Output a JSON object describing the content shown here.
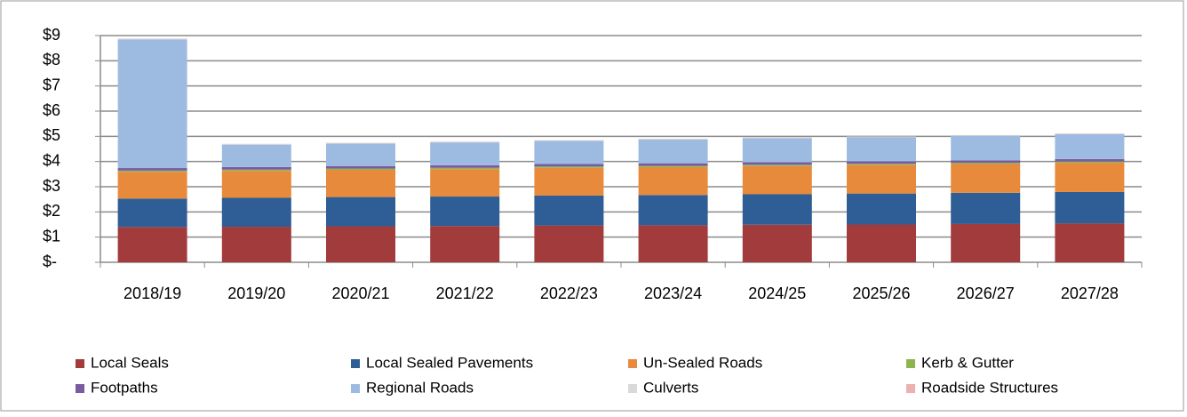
{
  "chart_data": {
    "type": "stacked_bar",
    "categories": [
      "2018/19",
      "2019/20",
      "2020/21",
      "2021/22",
      "2022/23",
      "2023/24",
      "2024/25",
      "2025/26",
      "2026/27",
      "2027/28"
    ],
    "series": [
      {
        "name": "Local Seals",
        "color": "#a13b3c",
        "values": [
          1.4,
          1.41,
          1.43,
          1.44,
          1.46,
          1.47,
          1.49,
          1.5,
          1.52,
          1.54
        ]
      },
      {
        "name": "Local Sealed Pavements",
        "color": "#2f5d95",
        "values": [
          1.13,
          1.15,
          1.16,
          1.17,
          1.19,
          1.2,
          1.21,
          1.23,
          1.24,
          1.25
        ]
      },
      {
        "name": "Un-Sealed Roads",
        "color": "#e88a3b",
        "values": [
          1.06,
          1.07,
          1.08,
          1.09,
          1.1,
          1.11,
          1.12,
          1.13,
          1.14,
          1.16
        ]
      },
      {
        "name": "Kerb & Gutter",
        "color": "#8db54e",
        "values": [
          0.05,
          0.05,
          0.05,
          0.05,
          0.05,
          0.05,
          0.05,
          0.05,
          0.05,
          0.05
        ]
      },
      {
        "name": "Footpaths",
        "color": "#7a5ba1",
        "values": [
          0.1,
          0.1,
          0.1,
          0.1,
          0.1,
          0.1,
          0.1,
          0.1,
          0.1,
          0.1
        ]
      },
      {
        "name": "Regional Roads",
        "color": "#9dbbe1",
        "values": [
          5.11,
          0.89,
          0.89,
          0.91,
          0.92,
          0.94,
          0.96,
          0.96,
          0.97,
          0.99
        ]
      },
      {
        "name": "Culverts",
        "color": "#d9d9d9",
        "values": [
          0.02,
          0.02,
          0.02,
          0.02,
          0.02,
          0.02,
          0.02,
          0.02,
          0.02,
          0.02
        ]
      },
      {
        "name": "Roadside Structures",
        "color": "#ebb1b0",
        "values": [
          0.01,
          0.01,
          0.01,
          0.01,
          0.01,
          0.01,
          0.01,
          0.01,
          0.01,
          0.01
        ]
      }
    ],
    "ylim": [
      0,
      9
    ],
    "yticks": [
      {
        "value": 0,
        "label": "$-"
      },
      {
        "value": 1,
        "label": "$1"
      },
      {
        "value": 2,
        "label": "$2"
      },
      {
        "value": 3,
        "label": "$3"
      },
      {
        "value": 4,
        "label": "$4"
      },
      {
        "value": 5,
        "label": "$5"
      },
      {
        "value": 6,
        "label": "$6"
      },
      {
        "value": 7,
        "label": "$7"
      },
      {
        "value": 8,
        "label": "$8"
      },
      {
        "value": 9,
        "label": "$9"
      }
    ],
    "grid": true,
    "legend": "bottom"
  }
}
